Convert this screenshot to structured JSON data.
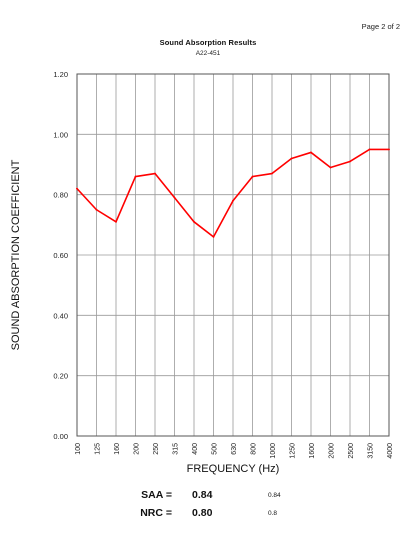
{
  "page": "Page 2 of 2",
  "report": {
    "title": "Sound Absorption Results",
    "subtitle": "A22-451"
  },
  "chart_data": {
    "type": "line",
    "xlabel": "FREQUENCY (Hz)",
    "ylabel": "SOUND ABSORPTION COEFFICIENT",
    "categories": [
      "100",
      "125",
      "160",
      "200",
      "250",
      "315",
      "400",
      "500",
      "630",
      "800",
      "1000",
      "1250",
      "1600",
      "2000",
      "2500",
      "3150",
      "4000"
    ],
    "series": [
      {
        "values": [
          0.82,
          0.75,
          0.71,
          0.86,
          0.87,
          0.79,
          0.71,
          0.66,
          0.78,
          0.86,
          0.87,
          0.92,
          0.94,
          0.89,
          0.91,
          0.95,
          0.95
        ],
        "color": "#ff0000"
      }
    ],
    "ylim": [
      0,
      1.2
    ],
    "yticks": [
      "0.00",
      "0.20",
      "0.40",
      "0.60",
      "0.80",
      "1.00",
      "1.20"
    ],
    "grid": true
  },
  "summary": [
    {
      "label": "SAA =",
      "value": "0.84",
      "raw": "0.84"
    },
    {
      "label": "NRC =",
      "value": "0.80",
      "raw": "0.8"
    }
  ]
}
